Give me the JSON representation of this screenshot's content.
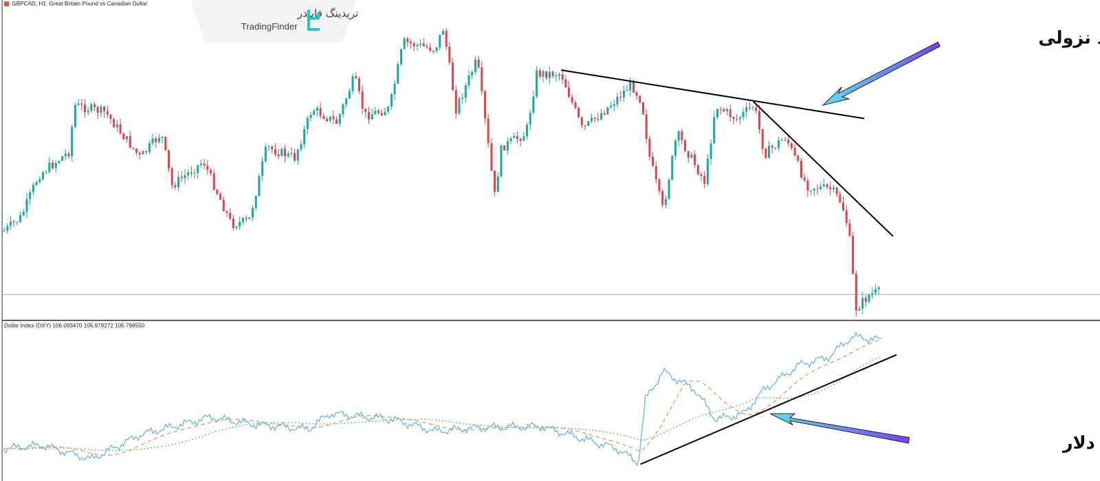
{
  "header": {
    "symbol": "GBPCAD, H1:  Great Britain Pound vs Canadian Dollar"
  },
  "logo": {
    "persian": "تریدینگ فایندر",
    "english": "TradingFinder"
  },
  "indicator": {
    "label": "Dollar Index (DXY) 106.093470 105.979272 105.798550"
  },
  "annotations": {
    "downtrend": "روند نزولی",
    "dollar_growth": "رشد شاخص دلار"
  }
}
